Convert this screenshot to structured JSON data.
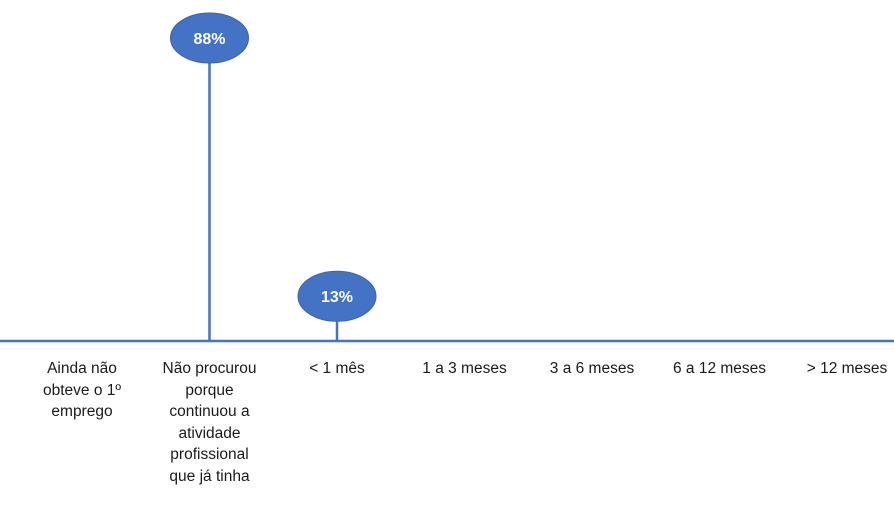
{
  "chart_data": {
    "type": "lollipop",
    "categories": [
      "Ainda não obteve o 1º emprego",
      "Não procurou porque continuou a atividade profissional que já tinha",
      "< 1  mês",
      "1  a  3 meses",
      "3  a  6 meses",
      "6  a 12 meses",
      "> 12 meses"
    ],
    "category_label_lines": [
      "Ainda não\nobteve o 1º\nemprego",
      "Não procurou\nporque\ncontinuou a\natividade\nprofissional\nque já tinha",
      "< 1  mês",
      "1  a  3 meses",
      "3  a  6 meses",
      "6  a 12 meses",
      "> 12 meses"
    ],
    "values": [
      null,
      88,
      13,
      null,
      null,
      null,
      null
    ],
    "data_labels": [
      "",
      "88%",
      "13%",
      "",
      "",
      "",
      ""
    ],
    "ylim": [
      0,
      100
    ],
    "grid": false,
    "legend": "none",
    "colors": {
      "marker": "#4472C4",
      "line": "#4472C4",
      "marker_border": "#3A64AE",
      "label_text": "#FFFFFF"
    }
  }
}
